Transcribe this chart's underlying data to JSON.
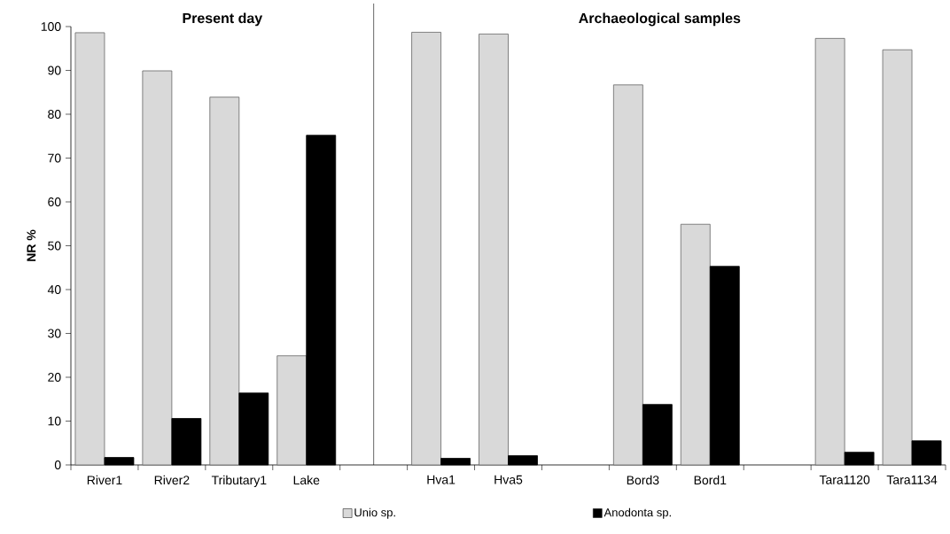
{
  "chart_data": {
    "type": "bar",
    "categories": [
      "River1",
      "River2",
      "Tributary1",
      "Lake",
      null,
      "Hva1",
      "Hva5",
      null,
      "Bord3",
      "Bord1",
      null,
      "Tara1120",
      "Tara1134"
    ],
    "series": [
      {
        "name": "Unio sp.",
        "color": "#d9d9d9",
        "values": [
          98.6,
          89.9,
          83.9,
          24.9,
          null,
          98.7,
          98.3,
          null,
          86.7,
          54.9,
          null,
          97.3,
          94.7
        ]
      },
      {
        "name": "Anodonta sp.",
        "color": "#000000",
        "values": [
          1.7,
          10.6,
          16.4,
          75.2,
          null,
          1.5,
          2.1,
          null,
          13.8,
          45.3,
          null,
          2.9,
          5.5
        ]
      }
    ],
    "ylabel": "NR %",
    "ylim": [
      0,
      100
    ],
    "yticks": [
      0,
      10,
      20,
      30,
      40,
      50,
      60,
      70,
      80,
      90,
      100
    ],
    "annotations": [
      "Present day",
      "Archaeological samples"
    ],
    "legend": "bottom"
  }
}
